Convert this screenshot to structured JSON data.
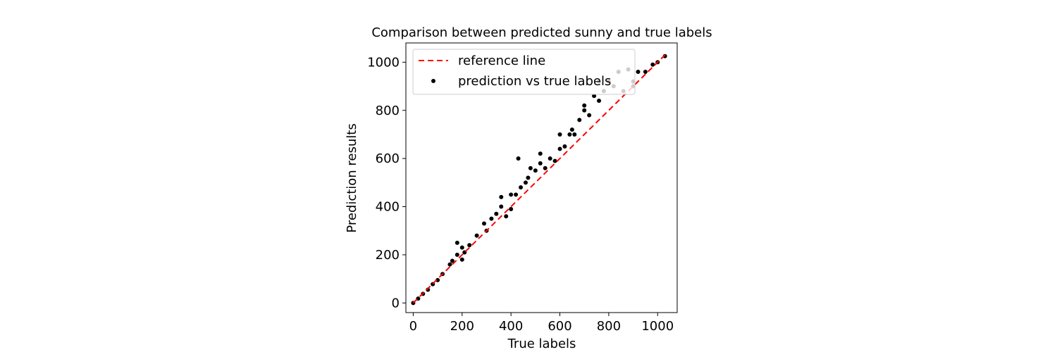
{
  "chart_data": {
    "type": "scatter",
    "title": "Comparison between predicted sunny and true labels",
    "xlabel": "True labels",
    "ylabel": "Prediction results",
    "xlim": [
      -30,
      1080
    ],
    "ylim": [
      -40,
      1080
    ],
    "xticks": [
      0,
      200,
      400,
      600,
      800,
      1000
    ],
    "yticks": [
      0,
      200,
      400,
      600,
      800,
      1000
    ],
    "grid": false,
    "legend_position": "top-left",
    "series": [
      {
        "name": "reference line",
        "kind": "line",
        "style": "dashed",
        "color": "#ff0000",
        "x": [
          0,
          1030
        ],
        "y": [
          0,
          1030
        ]
      },
      {
        "name": "prediction vs true labels",
        "kind": "scatter",
        "color": "#000000",
        "x": [
          0,
          20,
          40,
          60,
          80,
          100,
          120,
          150,
          160,
          180,
          200,
          200,
          210,
          230,
          260,
          290,
          300,
          320,
          340,
          360,
          380,
          400,
          400,
          420,
          440,
          460,
          470,
          480,
          500,
          520,
          540,
          560,
          580,
          600,
          620,
          640,
          650,
          660,
          680,
          700,
          720,
          740,
          760,
          780,
          800,
          820,
          840,
          860,
          880,
          900,
          920,
          950,
          980,
          1000,
          1030,
          180,
          360,
          430,
          520,
          600,
          700,
          760,
          840,
          900
        ],
        "y": [
          0,
          18,
          38,
          55,
          78,
          95,
          120,
          160,
          175,
          200,
          180,
          230,
          210,
          240,
          280,
          330,
          300,
          350,
          370,
          400,
          360,
          450,
          390,
          450,
          480,
          500,
          520,
          560,
          550,
          580,
          560,
          600,
          590,
          640,
          650,
          700,
          720,
          700,
          760,
          800,
          780,
          860,
          840,
          880,
          920,
          900,
          960,
          880,
          970,
          900,
          960,
          960,
          990,
          1000,
          1025,
          250,
          440,
          600,
          620,
          700,
          820,
          920,
          960,
          920
        ]
      }
    ]
  }
}
